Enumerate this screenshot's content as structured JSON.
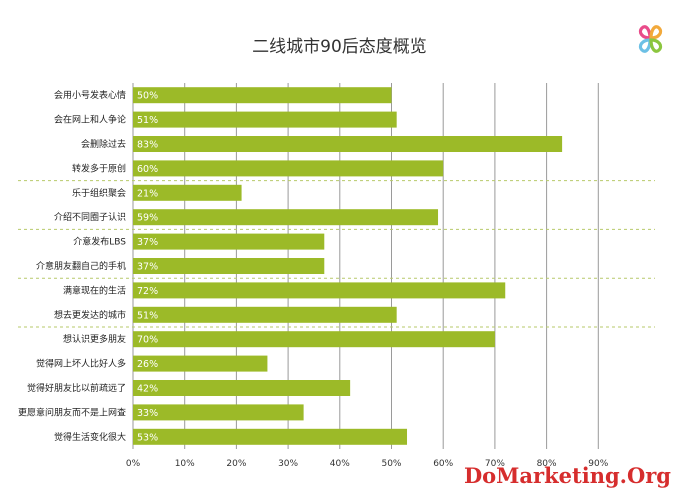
{
  "chart_data": {
    "type": "bar",
    "orientation": "horizontal",
    "title": "二线城市90后态度概览",
    "categories": [
      "会用小号发表心情",
      "会在网上和人争论",
      "会删除过去",
      "转发多于原创",
      "乐于组织聚会",
      "介绍不同圈子认识",
      "介意发布LBS",
      "介意朋友翻自己的手机",
      "满意现在的生活",
      "想去更发达的城市",
      "想认识更多朋友",
      "觉得网上坏人比好人多",
      "觉得好朋友比以前疏远了",
      "更愿意问朋友而不是上网查",
      "觉得生活变化很大"
    ],
    "values": [
      50,
      51,
      83,
      60,
      21,
      59,
      37,
      37,
      72,
      51,
      70,
      26,
      42,
      33,
      53
    ],
    "value_labels": [
      "50%",
      "51%",
      "83%",
      "60%",
      "21%",
      "59%",
      "37%",
      "37%",
      "72%",
      "51%",
      "70%",
      "26%",
      "42%",
      "33%",
      "53%"
    ],
    "xlim": [
      0,
      90
    ],
    "xticks": [
      "0%",
      "10%",
      "20%",
      "30%",
      "40%",
      "50%",
      "60%",
      "70%",
      "80%",
      "90%"
    ],
    "group_separators_after": [
      3,
      5,
      7,
      9
    ],
    "grid": true,
    "bar_color": "#9cba28",
    "grid_color": "#9a9a9a",
    "separator_color": "#b7c96a"
  },
  "watermark": "DoMarketing.Org",
  "logo": {
    "icon": "four-petal-flower-logo",
    "colors": [
      "#e94b8a",
      "#f2a93b",
      "#6cc0e5",
      "#8cc63f"
    ]
  }
}
